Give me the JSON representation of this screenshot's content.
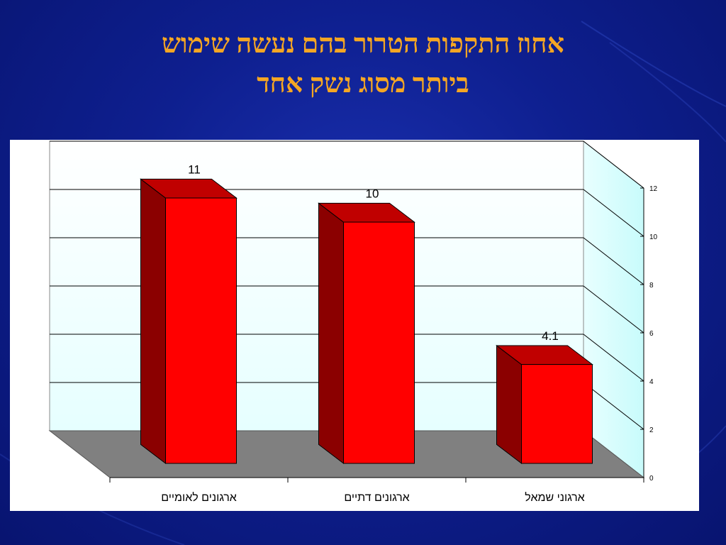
{
  "slide": {
    "title_line1": "אחוז התקפות הטרור בהם נעשה שימוש",
    "title_line2": "ביותר מסוג נשק אחד"
  },
  "colors": {
    "background": "#0e1f8f",
    "title": "#f5a623",
    "bar_front": "#ff0000",
    "bar_side": "#8b0000",
    "bar_top": "#c00000",
    "floor": "#808080",
    "wall": "#e6ffff"
  },
  "chart_data": {
    "type": "bar",
    "categories": [
      "ארגונים לאומיים",
      "ארגונים דתיים",
      "ארגוני שמאל"
    ],
    "values": [
      11,
      10,
      4.1
    ],
    "data_labels": [
      "11",
      "10",
      "4.1"
    ],
    "ylim": [
      0,
      12
    ],
    "yticks": [
      0,
      2,
      4,
      6,
      8,
      10,
      12
    ],
    "grid": true,
    "legend": "none",
    "three_d": true,
    "y_axis_side": "right"
  }
}
